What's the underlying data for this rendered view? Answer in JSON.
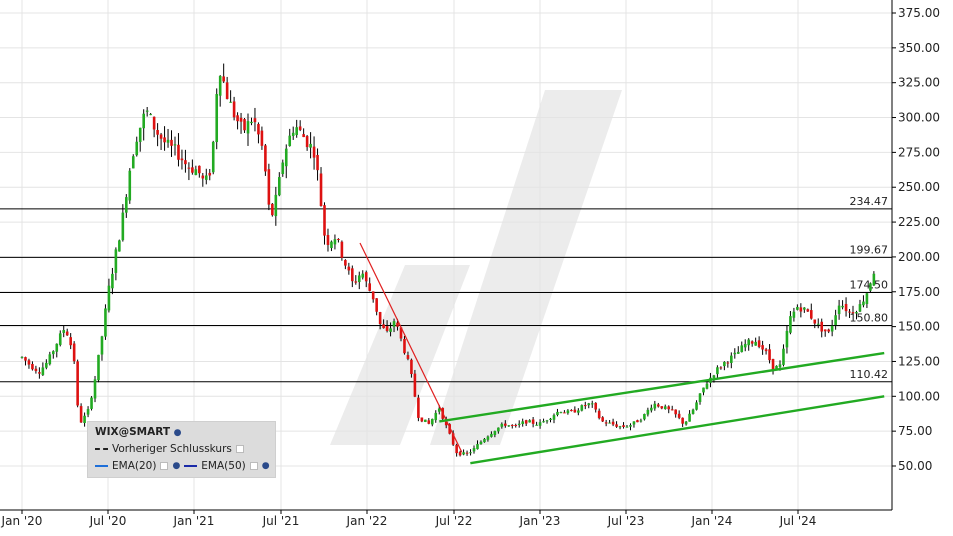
{
  "chart_data": {
    "type": "candlestick",
    "symbol": "WIX@SMART",
    "x_tick_labels": [
      "Jan '20",
      "Jul '20",
      "Jan '21",
      "Jul '21",
      "Jan '22",
      "Jul '22",
      "Jan '23",
      "Jul '23",
      "Jan '24",
      "Jul '24"
    ],
    "y_tick_labels": [
      "50.00",
      "75.00",
      "100.00",
      "125.00",
      "150.00",
      "175.00",
      "200.00",
      "225.00",
      "250.00",
      "275.00",
      "300.00",
      "325.00",
      "350.00",
      "375.00"
    ],
    "ylim": [
      25,
      385
    ],
    "horizontal_levels": [
      {
        "label": "234.47",
        "value": 234.47
      },
      {
        "label": "199.67",
        "value": 199.67
      },
      {
        "label": "174.50",
        "value": 174.5
      },
      {
        "label": "150.80",
        "value": 150.8
      },
      {
        "label": "110.42",
        "value": 110.42
      }
    ],
    "price_path": [
      [
        2020.0,
        128
      ],
      [
        2020.05,
        122
      ],
      [
        2020.1,
        118
      ],
      [
        2020.15,
        125
      ],
      [
        2020.2,
        138
      ],
      [
        2020.25,
        150
      ],
      [
        2020.3,
        130
      ],
      [
        2020.33,
        80
      ],
      [
        2020.38,
        88
      ],
      [
        2020.42,
        110
      ],
      [
        2020.46,
        140
      ],
      [
        2020.5,
        175
      ],
      [
        2020.54,
        200
      ],
      [
        2020.58,
        225
      ],
      [
        2020.62,
        260
      ],
      [
        2020.66,
        285
      ],
      [
        2020.72,
        305
      ],
      [
        2020.78,
        290
      ],
      [
        2020.84,
        280
      ],
      [
        2020.9,
        275
      ],
      [
        2020.96,
        265
      ],
      [
        2021.02,
        262
      ],
      [
        2021.06,
        252
      ],
      [
        2021.1,
        265
      ],
      [
        2021.14,
        340
      ],
      [
        2021.18,
        320
      ],
      [
        2021.22,
        305
      ],
      [
        2021.28,
        290
      ],
      [
        2021.34,
        300
      ],
      [
        2021.4,
        275
      ],
      [
        2021.44,
        225
      ],
      [
        2021.48,
        245
      ],
      [
        2021.52,
        275
      ],
      [
        2021.58,
        295
      ],
      [
        2021.64,
        285
      ],
      [
        2021.7,
        275
      ],
      [
        2021.76,
        210
      ],
      [
        2021.82,
        215
      ],
      [
        2021.86,
        200
      ],
      [
        2021.92,
        180
      ],
      [
        2021.97,
        190
      ],
      [
        2022.0,
        180
      ],
      [
        2022.04,
        170
      ],
      [
        2022.08,
        150
      ],
      [
        2022.12,
        145
      ],
      [
        2022.16,
        155
      ],
      [
        2022.2,
        140
      ],
      [
        2022.25,
        120
      ],
      [
        2022.3,
        85
      ],
      [
        2022.36,
        80
      ],
      [
        2022.42,
        92
      ],
      [
        2022.47,
        75
      ],
      [
        2022.52,
        60
      ],
      [
        2022.57,
        58
      ],
      [
        2022.62,
        62
      ],
      [
        2022.68,
        70
      ],
      [
        2022.74,
        76
      ],
      [
        2022.8,
        80
      ],
      [
        2022.86,
        78
      ],
      [
        2022.92,
        82
      ],
      [
        2023.0,
        80
      ],
      [
        2023.06,
        85
      ],
      [
        2023.12,
        90
      ],
      [
        2023.18,
        88
      ],
      [
        2023.24,
        92
      ],
      [
        2023.3,
        95
      ],
      [
        2023.36,
        82
      ],
      [
        2023.42,
        80
      ],
      [
        2023.48,
        78
      ],
      [
        2023.54,
        80
      ],
      [
        2023.6,
        85
      ],
      [
        2023.66,
        95
      ],
      [
        2023.72,
        92
      ],
      [
        2023.78,
        88
      ],
      [
        2023.84,
        80
      ],
      [
        2023.9,
        92
      ],
      [
        2023.96,
        108
      ],
      [
        2024.02,
        118
      ],
      [
        2024.08,
        125
      ],
      [
        2024.14,
        130
      ],
      [
        2024.2,
        138
      ],
      [
        2024.26,
        140
      ],
      [
        2024.32,
        130
      ],
      [
        2024.36,
        120
      ],
      [
        2024.4,
        122
      ],
      [
        2024.45,
        155
      ],
      [
        2024.5,
        165
      ],
      [
        2024.56,
        160
      ],
      [
        2024.62,
        150
      ],
      [
        2024.68,
        145
      ],
      [
        2024.74,
        168
      ],
      [
        2024.8,
        160
      ],
      [
        2024.86,
        165
      ],
      [
        2024.9,
        175
      ],
      [
        2024.94,
        190
      ]
    ],
    "trendlines": [
      {
        "color": "#e02020",
        "points": [
          [
            2021.96,
            210
          ],
          [
            2022.55,
            60
          ]
        ]
      },
      {
        "color": "#22aa22",
        "points": [
          [
            2022.42,
            82
          ],
          [
            2025.0,
            131
          ]
        ]
      },
      {
        "color": "#22aa22",
        "points": [
          [
            2022.6,
            52
          ],
          [
            2025.0,
            100
          ]
        ]
      }
    ],
    "legend": {
      "title": "WIX@SMART",
      "prev_close_label": "Vorheriger Schlusskurs",
      "ema20_label": "EMA(20)",
      "ema50_label": "EMA(50)"
    },
    "colors": {
      "up": "#22aa22",
      "down": "#dd1111",
      "wick": "#000000",
      "grid": "#e4e4e4",
      "level": "#000000",
      "watermark": "#e9e9e9"
    }
  }
}
